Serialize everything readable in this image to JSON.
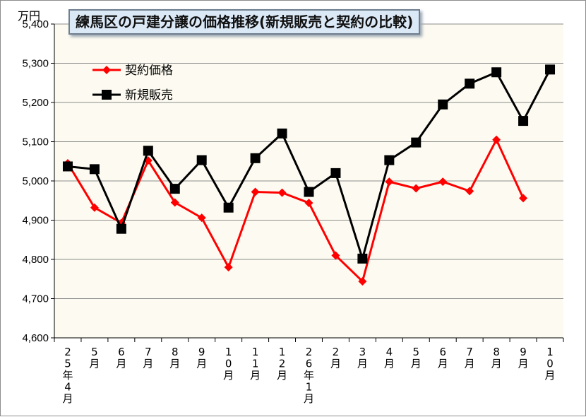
{
  "chart_data": {
    "type": "line",
    "title": "練馬区の戸建分譲の価格推移(新規販売と契約の比較)",
    "unit_label": "万円",
    "categories": [
      "25年4月",
      "5月",
      "6月",
      "7月",
      "8月",
      "9月",
      "10月",
      "11月",
      "12月",
      "26年1月",
      "2月",
      "3月",
      "4月",
      "5月",
      "6月",
      "7月",
      "8月",
      "9月",
      "10月"
    ],
    "ylim": [
      4600,
      5400
    ],
    "yticks": [
      "4,600",
      "4,700",
      "4,800",
      "4,900",
      "5,000",
      "5,100",
      "5,200",
      "5,300",
      "5,400"
    ],
    "grid": true,
    "legend_position": "top-left",
    "series": [
      {
        "name": "契約価格",
        "color": "#ff0000",
        "marker": "diamond",
        "values": [
          5045,
          4932,
          4893,
          5052,
          4945,
          4906,
          4780,
          4972,
          4970,
          4944,
          4810,
          4744,
          4998,
          4981,
          4998,
          4974,
          5105,
          4956,
          null
        ]
      },
      {
        "name": "新規販売",
        "color": "#000000",
        "marker": "square",
        "values": [
          5037,
          5030,
          4878,
          5077,
          4980,
          5053,
          4932,
          5058,
          5121,
          4972,
          5020,
          4802,
          5053,
          5098,
          5195,
          5248,
          5277,
          5153,
          5284
        ]
      }
    ]
  }
}
